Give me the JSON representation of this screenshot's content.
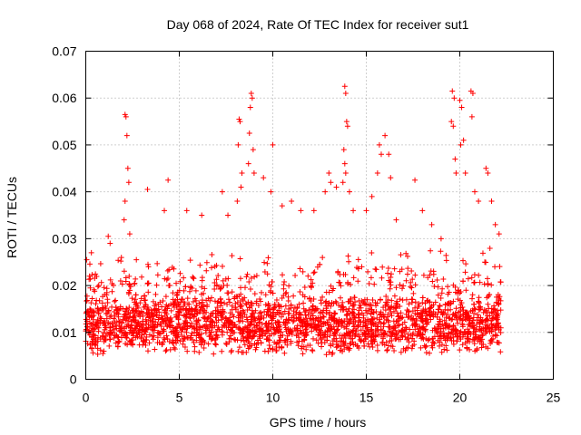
{
  "chart_data": {
    "type": "scatter",
    "title": "Day 068 of 2024, Rate Of TEC Index for receiver sut1",
    "xlabel": "GPS time / hours",
    "ylabel": "ROTI / TECUs",
    "xlim": [
      0,
      25
    ],
    "ylim": [
      0,
      0.07
    ],
    "xticks": [
      0,
      5,
      10,
      15,
      20,
      25
    ],
    "xtick_labels": [
      "0",
      "5",
      "10",
      "15",
      "20",
      "25"
    ],
    "yticks": [
      0,
      0.01,
      0.02,
      0.03,
      0.04,
      0.05,
      0.06,
      0.07
    ],
    "ytick_labels": [
      "0",
      "0.01",
      "0.02",
      "0.03",
      "0.04",
      "0.05",
      "0.06",
      "0.07"
    ],
    "grid": true,
    "marker": "+",
    "color": "#ff0000",
    "data_extent": {
      "x_start": 0.0,
      "x_end": 22.2
    },
    "baseline_band": {
      "low": 0.005,
      "high": 0.018
    },
    "series": [
      {
        "name": "sut1 ROTI",
        "points": [
          [
            0.05,
            0.0255
          ],
          [
            0.3,
            0.027
          ],
          [
            0.2,
            0.022
          ],
          [
            1.2,
            0.0305
          ],
          [
            1.3,
            0.029
          ],
          [
            2.1,
            0.0565
          ],
          [
            2.15,
            0.056
          ],
          [
            2.2,
            0.052
          ],
          [
            2.25,
            0.045
          ],
          [
            2.3,
            0.042
          ],
          [
            2.1,
            0.038
          ],
          [
            2.05,
            0.034
          ],
          [
            2.35,
            0.031
          ],
          [
            3.3,
            0.0405
          ],
          [
            4.4,
            0.0425
          ],
          [
            4.2,
            0.036
          ],
          [
            5.4,
            0.036
          ],
          [
            6.2,
            0.035
          ],
          [
            7.3,
            0.04
          ],
          [
            7.6,
            0.035
          ],
          [
            8.1,
            0.038
          ],
          [
            8.3,
            0.041
          ],
          [
            8.35,
            0.044
          ],
          [
            8.2,
            0.0555
          ],
          [
            8.25,
            0.055
          ],
          [
            8.15,
            0.05
          ],
          [
            8.85,
            0.061
          ],
          [
            8.9,
            0.06
          ],
          [
            8.8,
            0.058
          ],
          [
            8.75,
            0.0525
          ],
          [
            8.95,
            0.049
          ],
          [
            8.7,
            0.046
          ],
          [
            9.0,
            0.044
          ],
          [
            9.5,
            0.043
          ],
          [
            10.0,
            0.05
          ],
          [
            9.9,
            0.04
          ],
          [
            10.5,
            0.037
          ],
          [
            11.0,
            0.038
          ],
          [
            11.5,
            0.036
          ],
          [
            12.2,
            0.036
          ],
          [
            12.8,
            0.04
          ],
          [
            13.0,
            0.044
          ],
          [
            13.1,
            0.042
          ],
          [
            13.4,
            0.041
          ],
          [
            13.85,
            0.0625
          ],
          [
            13.9,
            0.061
          ],
          [
            13.95,
            0.055
          ],
          [
            14.0,
            0.054
          ],
          [
            13.8,
            0.049
          ],
          [
            13.85,
            0.046
          ],
          [
            13.9,
            0.044
          ],
          [
            13.75,
            0.042
          ],
          [
            14.1,
            0.04
          ],
          [
            14.3,
            0.036
          ],
          [
            15.0,
            0.036
          ],
          [
            15.3,
            0.039
          ],
          [
            15.6,
            0.044
          ],
          [
            15.7,
            0.05
          ],
          [
            15.8,
            0.048
          ],
          [
            16.0,
            0.052
          ],
          [
            16.2,
            0.048
          ],
          [
            16.3,
            0.043
          ],
          [
            16.6,
            0.034
          ],
          [
            17.6,
            0.0425
          ],
          [
            18.0,
            0.036
          ],
          [
            18.5,
            0.033
          ],
          [
            19.0,
            0.03
          ],
          [
            19.6,
            0.0615
          ],
          [
            19.7,
            0.06
          ],
          [
            19.55,
            0.055
          ],
          [
            19.65,
            0.054
          ],
          [
            19.75,
            0.047
          ],
          [
            19.8,
            0.044
          ],
          [
            20.0,
            0.0595
          ],
          [
            20.1,
            0.058
          ],
          [
            20.2,
            0.051
          ],
          [
            20.05,
            0.05
          ],
          [
            20.3,
            0.044
          ],
          [
            20.6,
            0.0615
          ],
          [
            20.7,
            0.061
          ],
          [
            20.65,
            0.056
          ],
          [
            20.8,
            0.04
          ],
          [
            21.0,
            0.038
          ],
          [
            21.4,
            0.045
          ],
          [
            21.5,
            0.044
          ],
          [
            21.7,
            0.038
          ],
          [
            21.9,
            0.033
          ],
          [
            22.1,
            0.031
          ]
        ]
      }
    ]
  }
}
